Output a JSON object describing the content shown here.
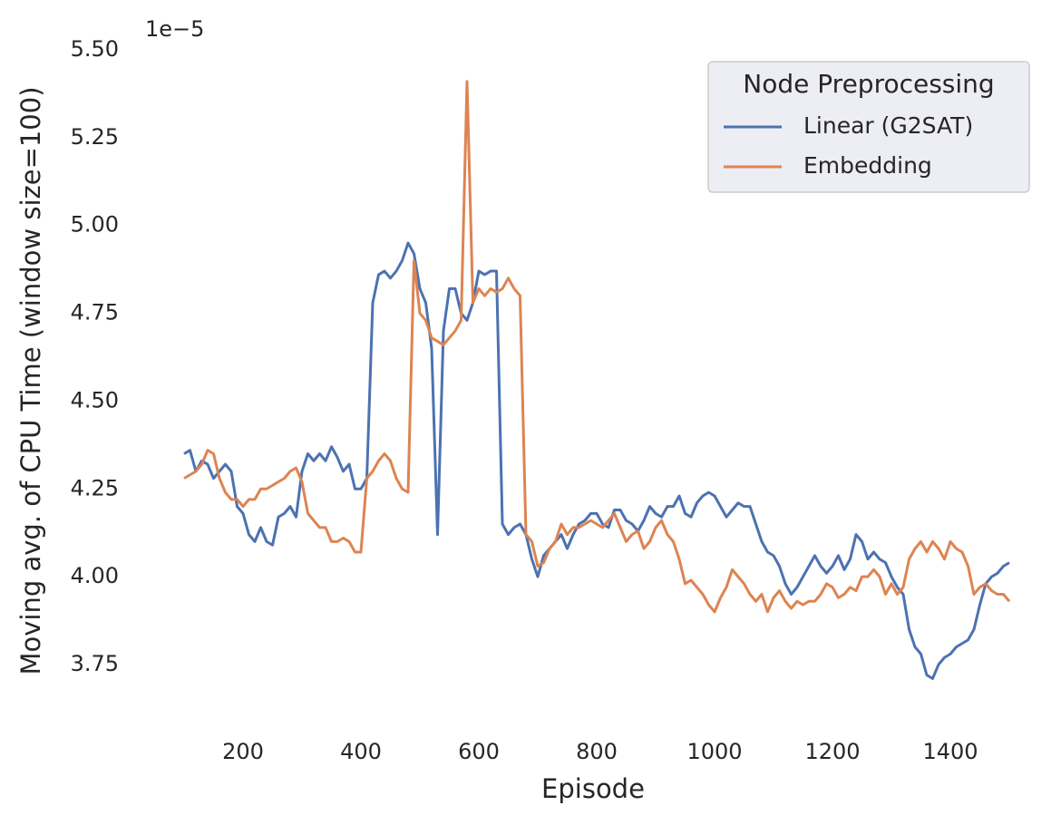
{
  "chart_data": {
    "type": "line",
    "x_label": "Episode",
    "y_label": "Moving avg. of CPU Time (window size=100)",
    "offset_text": "1e−5",
    "legend_title": "Node Preprocessing",
    "legend_position": "upper right",
    "grid": false,
    "xlim": [
      30,
      1570
    ],
    "ylim": [
      3.6,
      5.51
    ],
    "xticks": [
      200,
      400,
      600,
      800,
      1000,
      1200,
      1400
    ],
    "yticks": [
      {
        "value": 3.75,
        "label": "3.75"
      },
      {
        "value": 4.0,
        "label": "4.00"
      },
      {
        "value": 4.25,
        "label": "4.25"
      },
      {
        "value": 4.5,
        "label": "4.50"
      },
      {
        "value": 4.75,
        "label": "4.75"
      },
      {
        "value": 5.0,
        "label": "5.00"
      },
      {
        "value": 5.25,
        "label": "5.25"
      },
      {
        "value": 5.5,
        "label": "5.50"
      }
    ],
    "x": [
      100,
      110,
      120,
      130,
      140,
      150,
      160,
      170,
      180,
      190,
      200,
      210,
      220,
      230,
      240,
      250,
      260,
      270,
      280,
      290,
      300,
      310,
      320,
      330,
      340,
      350,
      360,
      370,
      380,
      390,
      400,
      410,
      420,
      430,
      440,
      450,
      460,
      470,
      480,
      490,
      500,
      510,
      520,
      530,
      540,
      550,
      560,
      570,
      580,
      590,
      600,
      610,
      620,
      630,
      640,
      650,
      660,
      670,
      680,
      690,
      700,
      710,
      720,
      730,
      740,
      750,
      760,
      770,
      780,
      790,
      800,
      810,
      820,
      830,
      840,
      850,
      860,
      870,
      880,
      890,
      900,
      910,
      920,
      930,
      940,
      950,
      960,
      970,
      980,
      990,
      1000,
      1010,
      1020,
      1030,
      1040,
      1050,
      1060,
      1070,
      1080,
      1090,
      1100,
      1110,
      1120,
      1130,
      1140,
      1150,
      1160,
      1170,
      1180,
      1190,
      1200,
      1210,
      1220,
      1230,
      1240,
      1250,
      1260,
      1270,
      1280,
      1290,
      1300,
      1310,
      1320,
      1330,
      1340,
      1350,
      1360,
      1370,
      1380,
      1390,
      1400,
      1410,
      1420,
      1430,
      1440,
      1450,
      1460,
      1470,
      1480,
      1490,
      1500
    ],
    "series": [
      {
        "name": "Linear (G2SAT)",
        "color": "#4c72b0",
        "values": [
          4.35,
          4.36,
          4.3,
          4.33,
          4.32,
          4.28,
          4.3,
          4.32,
          4.3,
          4.2,
          4.18,
          4.12,
          4.1,
          4.14,
          4.1,
          4.09,
          4.17,
          4.18,
          4.2,
          4.17,
          4.3,
          4.35,
          4.33,
          4.35,
          4.33,
          4.37,
          4.34,
          4.3,
          4.32,
          4.25,
          4.25,
          4.28,
          4.78,
          4.86,
          4.87,
          4.85,
          4.87,
          4.9,
          4.95,
          4.92,
          4.82,
          4.78,
          4.65,
          4.12,
          4.7,
          4.82,
          4.82,
          4.75,
          4.73,
          4.78,
          4.87,
          4.86,
          4.87,
          4.87,
          4.15,
          4.12,
          4.14,
          4.15,
          4.12,
          4.05,
          4.0,
          4.06,
          4.08,
          4.1,
          4.12,
          4.08,
          4.12,
          4.15,
          4.16,
          4.18,
          4.18,
          4.15,
          4.14,
          4.19,
          4.19,
          4.16,
          4.15,
          4.13,
          4.16,
          4.2,
          4.18,
          4.17,
          4.2,
          4.2,
          4.23,
          4.18,
          4.17,
          4.21,
          4.23,
          4.24,
          4.23,
          4.2,
          4.17,
          4.19,
          4.21,
          4.2,
          4.2,
          4.15,
          4.1,
          4.07,
          4.06,
          4.03,
          3.98,
          3.95,
          3.97,
          4.0,
          4.03,
          4.06,
          4.03,
          4.01,
          4.03,
          4.06,
          4.02,
          4.05,
          4.12,
          4.1,
          4.05,
          4.07,
          4.05,
          4.04,
          4.0,
          3.97,
          3.95,
          3.85,
          3.8,
          3.78,
          3.72,
          3.71,
          3.75,
          3.77,
          3.78,
          3.8,
          3.81,
          3.82,
          3.85,
          3.92,
          3.98,
          4.0,
          4.01,
          4.03,
          4.04
        ]
      },
      {
        "name": "Embedding",
        "color": "#dd8452",
        "values": [
          4.28,
          4.29,
          4.3,
          4.32,
          4.36,
          4.35,
          4.28,
          4.24,
          4.22,
          4.22,
          4.2,
          4.22,
          4.22,
          4.25,
          4.25,
          4.26,
          4.27,
          4.28,
          4.3,
          4.31,
          4.27,
          4.18,
          4.16,
          4.14,
          4.14,
          4.1,
          4.1,
          4.11,
          4.1,
          4.07,
          4.07,
          4.28,
          4.3,
          4.33,
          4.35,
          4.33,
          4.28,
          4.25,
          4.24,
          4.9,
          4.75,
          4.73,
          4.68,
          4.67,
          4.66,
          4.68,
          4.7,
          4.73,
          5.41,
          4.78,
          4.82,
          4.8,
          4.82,
          4.81,
          4.82,
          4.85,
          4.82,
          4.8,
          4.12,
          4.1,
          4.03,
          4.04,
          4.08,
          4.1,
          4.15,
          4.12,
          4.14,
          4.14,
          4.15,
          4.16,
          4.15,
          4.14,
          4.16,
          4.18,
          4.14,
          4.1,
          4.12,
          4.13,
          4.08,
          4.1,
          4.14,
          4.16,
          4.12,
          4.1,
          4.05,
          3.98,
          3.99,
          3.97,
          3.95,
          3.92,
          3.9,
          3.94,
          3.97,
          4.02,
          4.0,
          3.98,
          3.95,
          3.93,
          3.95,
          3.9,
          3.94,
          3.96,
          3.93,
          3.91,
          3.93,
          3.92,
          3.93,
          3.93,
          3.95,
          3.98,
          3.97,
          3.94,
          3.95,
          3.97,
          3.96,
          4.0,
          4.0,
          4.02,
          4.0,
          3.95,
          3.98,
          3.95,
          3.97,
          4.05,
          4.08,
          4.1,
          4.07,
          4.1,
          4.08,
          4.05,
          4.1,
          4.08,
          4.07,
          4.03,
          3.95,
          3.97,
          3.98,
          3.96,
          3.95,
          3.95,
          3.93
        ]
      }
    ]
  }
}
